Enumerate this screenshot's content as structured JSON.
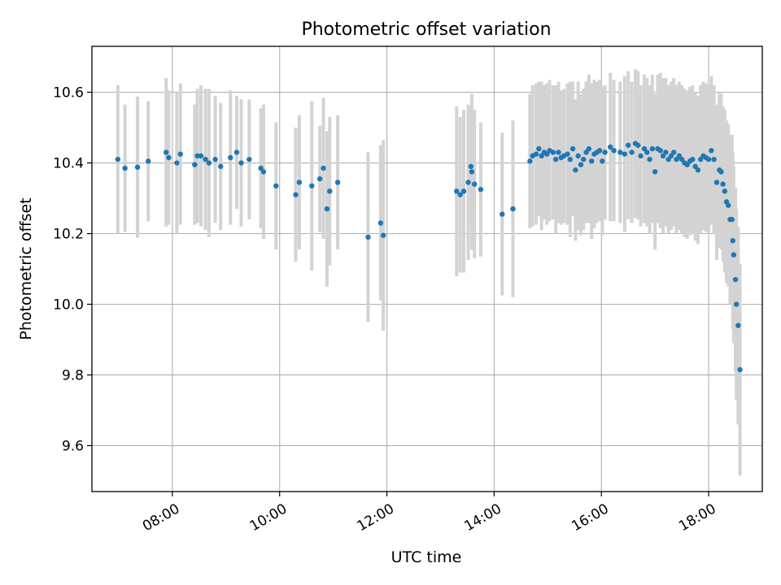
{
  "chart_data": {
    "type": "scatter",
    "title": "Photometric offset variation",
    "xlabel": "UTC time",
    "ylabel": "Photometric offset",
    "xlim_hours": [
      6.5,
      19.0
    ],
    "ylim": [
      9.47,
      10.73
    ],
    "x_ticks": [
      {
        "hour": 8,
        "label": "08:00"
      },
      {
        "hour": 10,
        "label": "10:00"
      },
      {
        "hour": 12,
        "label": "12:00"
      },
      {
        "hour": 14,
        "label": "14:00"
      },
      {
        "hour": 16,
        "label": "16:00"
      },
      {
        "hour": 18,
        "label": "18:00"
      }
    ],
    "y_ticks": [
      {
        "value": 9.6,
        "label": "9.6"
      },
      {
        "value": 9.8,
        "label": "9.8"
      },
      {
        "value": 10.0,
        "label": "10.0"
      },
      {
        "value": 10.2,
        "label": "10.2"
      },
      {
        "value": 10.4,
        "label": "10.4"
      },
      {
        "value": 10.6,
        "label": "10.6"
      }
    ],
    "grid": true,
    "point_color": "#1f77b4",
    "errorbar_color": "#d3d3d3",
    "points": [
      {
        "t": "06:59",
        "y": 10.41,
        "e": 0.21
      },
      {
        "t": "07:07",
        "y": 10.385,
        "e": 0.18
      },
      {
        "t": "07:21",
        "y": 10.388,
        "e": 0.2
      },
      {
        "t": "07:33",
        "y": 10.405,
        "e": 0.17
      },
      {
        "t": "07:53",
        "y": 10.43,
        "e": 0.21
      },
      {
        "t": "07:56",
        "y": 10.415,
        "e": 0.19
      },
      {
        "t": "08:05",
        "y": 10.4,
        "e": 0.2
      },
      {
        "t": "08:09",
        "y": 10.425,
        "e": 0.2
      },
      {
        "t": "08:25",
        "y": 10.395,
        "e": 0.17
      },
      {
        "t": "08:28",
        "y": 10.42,
        "e": 0.19
      },
      {
        "t": "08:32",
        "y": 10.42,
        "e": 0.2
      },
      {
        "t": "08:37",
        "y": 10.41,
        "e": 0.2
      },
      {
        "t": "08:41",
        "y": 10.4,
        "e": 0.21
      },
      {
        "t": "08:48",
        "y": 10.41,
        "e": 0.18
      },
      {
        "t": "08:54",
        "y": 10.39,
        "e": 0.18
      },
      {
        "t": "09:05",
        "y": 10.415,
        "e": 0.19
      },
      {
        "t": "09:12",
        "y": 10.43,
        "e": 0.16
      },
      {
        "t": "09:17",
        "y": 10.4,
        "e": 0.18
      },
      {
        "t": "09:26",
        "y": 10.41,
        "e": 0.17
      },
      {
        "t": "09:39",
        "y": 10.385,
        "e": 0.17
      },
      {
        "t": "09:42",
        "y": 10.375,
        "e": 0.19
      },
      {
        "t": "09:56",
        "y": 10.335,
        "e": 0.18
      },
      {
        "t": "10:18",
        "y": 10.31,
        "e": 0.19
      },
      {
        "t": "10:22",
        "y": 10.345,
        "e": 0.19
      },
      {
        "t": "10:36",
        "y": 10.335,
        "e": 0.24
      },
      {
        "t": "10:45",
        "y": 10.355,
        "e": 0.15
      },
      {
        "t": "10:49",
        "y": 10.385,
        "e": 0.2
      },
      {
        "t": "10:53",
        "y": 10.27,
        "e": 0.22
      },
      {
        "t": "10:56",
        "y": 10.32,
        "e": 0.21
      },
      {
        "t": "11:05",
        "y": 10.345,
        "e": 0.19
      },
      {
        "t": "11:39",
        "y": 10.19,
        "e": 0.24
      },
      {
        "t": "11:53",
        "y": 10.23,
        "e": 0.22
      },
      {
        "t": "11:56",
        "y": 10.195,
        "e": 0.27
      },
      {
        "t": "13:18",
        "y": 10.32,
        "e": 0.24
      },
      {
        "t": "13:22",
        "y": 10.31,
        "e": 0.22
      },
      {
        "t": "13:26",
        "y": 10.32,
        "e": 0.23
      },
      {
        "t": "13:31",
        "y": 10.345,
        "e": 0.22
      },
      {
        "t": "13:34",
        "y": 10.39,
        "e": 0.17
      },
      {
        "t": "13:35",
        "y": 10.375,
        "e": 0.22
      },
      {
        "t": "13:38",
        "y": 10.34,
        "e": 0.21
      },
      {
        "t": "13:45",
        "y": 10.325,
        "e": 0.19
      },
      {
        "t": "14:09",
        "y": 10.255,
        "e": 0.23
      },
      {
        "t": "14:21",
        "y": 10.27,
        "e": 0.25
      },
      {
        "t": "14:40",
        "y": 10.405,
        "e": 0.19
      },
      {
        "t": "14:43",
        "y": 10.42,
        "e": 0.2
      },
      {
        "t": "14:47",
        "y": 10.425,
        "e": 0.2
      },
      {
        "t": "14:50",
        "y": 10.44,
        "e": 0.19
      },
      {
        "t": "14:53",
        "y": 10.42,
        "e": 0.21
      },
      {
        "t": "14:56",
        "y": 10.43,
        "e": 0.19
      },
      {
        "t": "14:59",
        "y": 10.425,
        "e": 0.2
      },
      {
        "t": "15:02",
        "y": 10.435,
        "e": 0.2
      },
      {
        "t": "15:06",
        "y": 10.43,
        "e": 0.19
      },
      {
        "t": "15:09",
        "y": 10.41,
        "e": 0.21
      },
      {
        "t": "15:12",
        "y": 10.43,
        "e": 0.2
      },
      {
        "t": "15:15",
        "y": 10.415,
        "e": 0.19
      },
      {
        "t": "15:18",
        "y": 10.42,
        "e": 0.19
      },
      {
        "t": "15:22",
        "y": 10.425,
        "e": 0.2
      },
      {
        "t": "15:25",
        "y": 10.41,
        "e": 0.22
      },
      {
        "t": "15:28",
        "y": 10.44,
        "e": 0.19
      },
      {
        "t": "15:31",
        "y": 10.38,
        "e": 0.2
      },
      {
        "t": "15:34",
        "y": 10.42,
        "e": 0.21
      },
      {
        "t": "15:37",
        "y": 10.395,
        "e": 0.2
      },
      {
        "t": "15:40",
        "y": 10.41,
        "e": 0.2
      },
      {
        "t": "15:43",
        "y": 10.43,
        "e": 0.2
      },
      {
        "t": "15:46",
        "y": 10.44,
        "e": 0.21
      },
      {
        "t": "15:49",
        "y": 10.405,
        "e": 0.22
      },
      {
        "t": "15:52",
        "y": 10.425,
        "e": 0.21
      },
      {
        "t": "15:55",
        "y": 10.43,
        "e": 0.2
      },
      {
        "t": "15:58",
        "y": 10.435,
        "e": 0.2
      },
      {
        "t": "16:01",
        "y": 10.405,
        "e": 0.21
      },
      {
        "t": "16:04",
        "y": 10.43,
        "e": 0.19
      },
      {
        "t": "16:10",
        "y": 10.445,
        "e": 0.21
      },
      {
        "t": "16:14",
        "y": 10.435,
        "e": 0.2
      },
      {
        "t": "16:21",
        "y": 10.43,
        "e": 0.2
      },
      {
        "t": "16:26",
        "y": 10.425,
        "e": 0.22
      },
      {
        "t": "16:30",
        "y": 10.45,
        "e": 0.21
      },
      {
        "t": "16:34",
        "y": 10.43,
        "e": 0.2
      },
      {
        "t": "16:38",
        "y": 10.455,
        "e": 0.21
      },
      {
        "t": "16:41",
        "y": 10.45,
        "e": 0.21
      },
      {
        "t": "16:44",
        "y": 10.42,
        "e": 0.2
      },
      {
        "t": "16:48",
        "y": 10.44,
        "e": 0.21
      },
      {
        "t": "16:51",
        "y": 10.43,
        "e": 0.21
      },
      {
        "t": "16:54",
        "y": 10.41,
        "e": 0.21
      },
      {
        "t": "16:57",
        "y": 10.44,
        "e": 0.21
      },
      {
        "t": "17:00",
        "y": 10.375,
        "e": 0.22
      },
      {
        "t": "17:03",
        "y": 10.44,
        "e": 0.21
      },
      {
        "t": "17:06",
        "y": 10.435,
        "e": 0.22
      },
      {
        "t": "17:09",
        "y": 10.42,
        "e": 0.22
      },
      {
        "t": "17:12",
        "y": 10.43,
        "e": 0.21
      },
      {
        "t": "17:15",
        "y": 10.41,
        "e": 0.21
      },
      {
        "t": "17:18",
        "y": 10.42,
        "e": 0.21
      },
      {
        "t": "17:21",
        "y": 10.43,
        "e": 0.21
      },
      {
        "t": "17:24",
        "y": 10.41,
        "e": 0.21
      },
      {
        "t": "17:27",
        "y": 10.42,
        "e": 0.21
      },
      {
        "t": "17:30",
        "y": 10.41,
        "e": 0.21
      },
      {
        "t": "17:33",
        "y": 10.4,
        "e": 0.21
      },
      {
        "t": "17:36",
        "y": 10.395,
        "e": 0.21
      },
      {
        "t": "17:39",
        "y": 10.405,
        "e": 0.21
      },
      {
        "t": "17:42",
        "y": 10.41,
        "e": 0.21
      },
      {
        "t": "17:45",
        "y": 10.39,
        "e": 0.21
      },
      {
        "t": "17:48",
        "y": 10.38,
        "e": 0.21
      },
      {
        "t": "17:51",
        "y": 10.41,
        "e": 0.21
      },
      {
        "t": "17:54",
        "y": 10.42,
        "e": 0.21
      },
      {
        "t": "17:57",
        "y": 10.415,
        "e": 0.21
      },
      {
        "t": "18:00",
        "y": 10.41,
        "e": 0.21
      },
      {
        "t": "18:03",
        "y": 10.435,
        "e": 0.21
      },
      {
        "t": "18:06",
        "y": 10.41,
        "e": 0.21
      },
      {
        "t": "18:09",
        "y": 10.345,
        "e": 0.22
      },
      {
        "t": "18:12",
        "y": 10.38,
        "e": 0.22
      },
      {
        "t": "18:14",
        "y": 10.375,
        "e": 0.22
      },
      {
        "t": "18:16",
        "y": 10.34,
        "e": 0.22
      },
      {
        "t": "18:18",
        "y": 10.32,
        "e": 0.23
      },
      {
        "t": "18:20",
        "y": 10.29,
        "e": 0.23
      },
      {
        "t": "18:22",
        "y": 10.28,
        "e": 0.23
      },
      {
        "t": "18:24",
        "y": 10.24,
        "e": 0.24
      },
      {
        "t": "18:26",
        "y": 10.24,
        "e": 0.24
      },
      {
        "t": "18:27",
        "y": 10.18,
        "e": 0.25
      },
      {
        "t": "18:28",
        "y": 10.14,
        "e": 0.25
      },
      {
        "t": "18:30",
        "y": 10.07,
        "e": 0.26
      },
      {
        "t": "18:31",
        "y": 10.0,
        "e": 0.27
      },
      {
        "t": "18:33",
        "y": 9.94,
        "e": 0.28
      },
      {
        "t": "18:35",
        "y": 9.815,
        "e": 0.3
      }
    ]
  }
}
